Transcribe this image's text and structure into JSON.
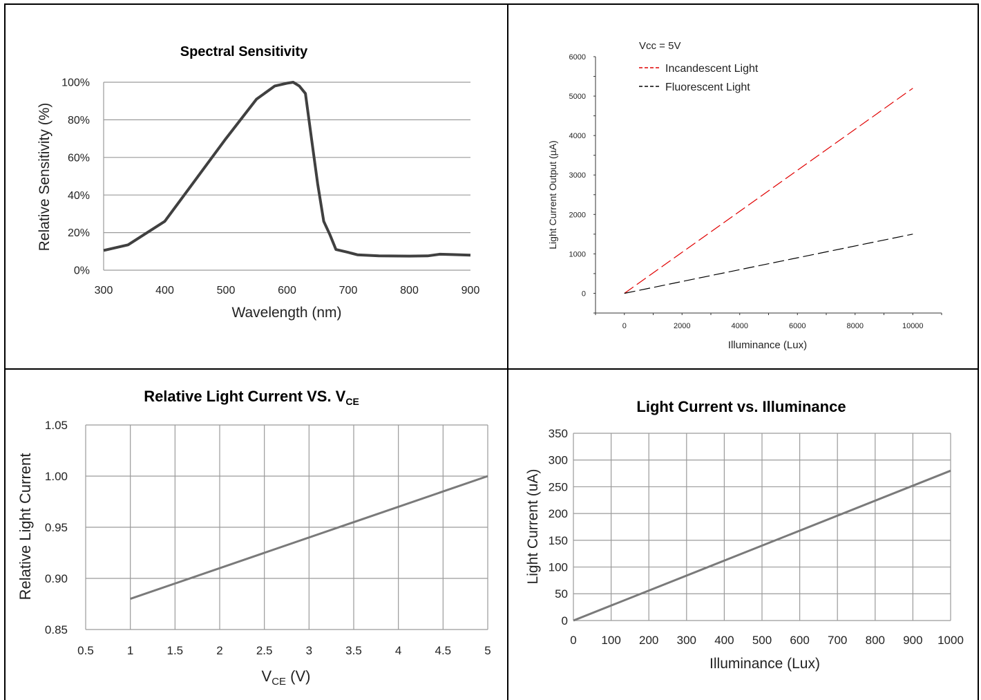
{
  "colors": {
    "grid": "#9a9a9a",
    "line_dark": "#404040",
    "line_gray": "#7a7a7a",
    "incandescent": "#e00000",
    "fluorescent": "#000000"
  },
  "chart_data": [
    {
      "type": "line",
      "title": "Spectral Sensitivity",
      "xlabel": "Wavelength (nm)",
      "ylabel": "Relative Sensitivity (%)",
      "xlim": [
        300,
        900
      ],
      "ylim": [
        0,
        100
      ],
      "xticks": [
        "300",
        "400",
        "500",
        "600",
        "700",
        "800",
        "900"
      ],
      "yticks": [
        "0%",
        "20%",
        "40%",
        "60%",
        "80%",
        "100%"
      ],
      "grid": "horizontal",
      "series": [
        {
          "x": [
            300,
            340,
            400,
            450,
            500,
            550,
            580,
            600,
            610,
            620,
            630,
            640,
            650,
            660,
            670,
            680,
            700,
            715,
            750,
            800,
            830,
            850,
            870,
            900
          ],
          "y": [
            10.5,
            13.5,
            26,
            48,
            70,
            91,
            98,
            99.5,
            100,
            98,
            94,
            70,
            46,
            26,
            19,
            11,
            9.5,
            8.2,
            7.6,
            7.5,
            7.6,
            8.5,
            8.3,
            8
          ]
        }
      ]
    },
    {
      "type": "line",
      "title": "",
      "xlabel": "Illuminance (Lux)",
      "ylabel": "Light Current Output (µA)",
      "xlim": [
        -1000,
        11000
      ],
      "ylim": [
        -500,
        6000
      ],
      "xticks": [
        "0",
        "2000",
        "4000",
        "6000",
        "8000",
        "10000"
      ],
      "yticks": [
        "0",
        "1000",
        "2000",
        "3000",
        "4000",
        "5000",
        "6000"
      ],
      "grid": "none",
      "legend": {
        "header": "Vcc = 5V",
        "placement": "top-left"
      },
      "series": [
        {
          "name": "Incandescent Light",
          "style": "dashed",
          "x": [
            0,
            10000
          ],
          "y": [
            0,
            5200
          ]
        },
        {
          "name": "Fluorescent Light",
          "style": "dashed",
          "x": [
            0,
            10000
          ],
          "y": [
            0,
            1500
          ]
        }
      ]
    },
    {
      "type": "line",
      "title": "Relative Light Current  VS.  V",
      "title_sub": "CE",
      "xlabel": "V",
      "xlabel_sub": "CE",
      "xlabel_unit": " (V)",
      "ylabel": "Relative Light Current",
      "xlim": [
        0.5,
        5
      ],
      "ylim": [
        0.85,
        1.05
      ],
      "xticks": [
        "0.5",
        "1",
        "1.5",
        "2",
        "2.5",
        "3",
        "3.5",
        "4",
        "4.5",
        "5"
      ],
      "yticks": [
        "0.85",
        "0.90",
        "0.95",
        "1.00",
        "1.05"
      ],
      "grid": "both",
      "series": [
        {
          "x": [
            1,
            5
          ],
          "y": [
            0.88,
            1.0
          ]
        }
      ]
    },
    {
      "type": "line",
      "title": "Light Current vs. Illuminance",
      "xlabel": "Illuminance (Lux)",
      "ylabel": "Light Current (uA)",
      "xlim": [
        0,
        1000
      ],
      "ylim": [
        0,
        350
      ],
      "xticks": [
        "0",
        "100",
        "200",
        "300",
        "400",
        "500",
        "600",
        "700",
        "800",
        "900",
        "1000"
      ],
      "yticks": [
        "0",
        "50",
        "100",
        "150",
        "200",
        "250",
        "300",
        "350"
      ],
      "grid": "both",
      "series": [
        {
          "x": [
            0,
            1000
          ],
          "y": [
            0,
            280
          ]
        }
      ]
    }
  ]
}
